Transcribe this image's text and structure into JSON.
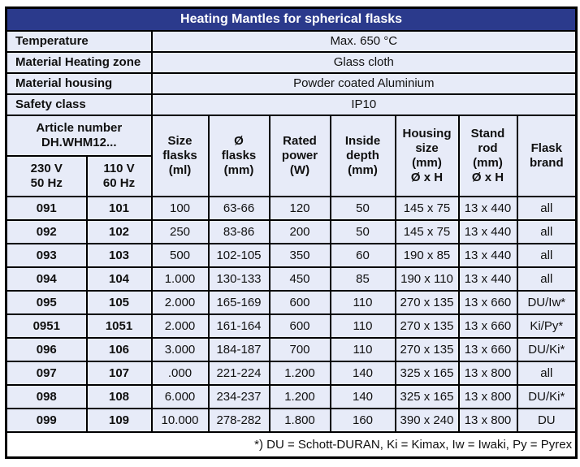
{
  "title": "Heating Mantles for spherical flasks",
  "info_rows": [
    {
      "label": "Temperature",
      "value": "Max. 650 °C"
    },
    {
      "label": "Material Heating zone",
      "value": "Glass cloth"
    },
    {
      "label": "Material housing",
      "value": "Powder coated Aluminium"
    },
    {
      "label": "Safety class",
      "value": "IP10"
    }
  ],
  "header": {
    "article_group": "Article number\nDH.WHM12...",
    "col_230": "230 V\n50 Hz",
    "col_110": "110 V\n60 Hz",
    "size_flasks": "Size\nflasks\n(ml)",
    "dia_flasks": "Ø\nflasks\n(mm)",
    "rated_power": "Rated\npower\n(W)",
    "inside_depth": "Inside\ndepth\n(mm)",
    "housing_size": "Housing\nsize\n(mm)\nØ x H",
    "stand_rod": "Stand\nrod\n(mm)\nØ x H",
    "flask_brand": "Flask\nbrand"
  },
  "rows": [
    [
      "091",
      "101",
      "100",
      "63-66",
      "120",
      "50",
      "145 x 75",
      "13 x 440",
      "all"
    ],
    [
      "092",
      "102",
      "250",
      "83-86",
      "200",
      "50",
      "145 x 75",
      "13 x 440",
      "all"
    ],
    [
      "093",
      "103",
      "500",
      "102-105",
      "350",
      "60",
      "190 x 85",
      "13 x 440",
      "all"
    ],
    [
      "094",
      "104",
      "1.000",
      "130-133",
      "450",
      "85",
      "190 x 110",
      "13 x 440",
      "all"
    ],
    [
      "095",
      "105",
      "2.000",
      "165-169",
      "600",
      "110",
      "270 x 135",
      "13 x 660",
      "DU/Iw*"
    ],
    [
      "0951",
      "1051",
      "2.000",
      "161-164",
      "600",
      "110",
      "270 x 135",
      "13 x 660",
      "Ki/Py*"
    ],
    [
      "096",
      "106",
      "3.000",
      "184-187",
      "700",
      "110",
      "270 x 135",
      "13 x 660",
      "DU/Ki*"
    ],
    [
      "097",
      "107",
      ".000",
      "221-224",
      "1.200",
      "140",
      "325 x 165",
      "13 x 800",
      "all"
    ],
    [
      "098",
      "108",
      "6.000",
      "234-237",
      "1.200",
      "140",
      "325 x 165",
      "13 x 800",
      "DU/Ki*"
    ],
    [
      "099",
      "109",
      "10.000",
      "278-282",
      "1.800",
      "160",
      "390 x 240",
      "13 x 800",
      "DU"
    ]
  ],
  "footnote": "*) DU = Schott-DURAN, Ki = Kimax, Iw = Iwaki, Py = Pyrex",
  "colors": {
    "title_bg": "#2b3a8c",
    "title_text": "#ffffff",
    "cell_bg": "#e7ebf8",
    "footer_bg": "#ffffff",
    "border": "#000000"
  }
}
